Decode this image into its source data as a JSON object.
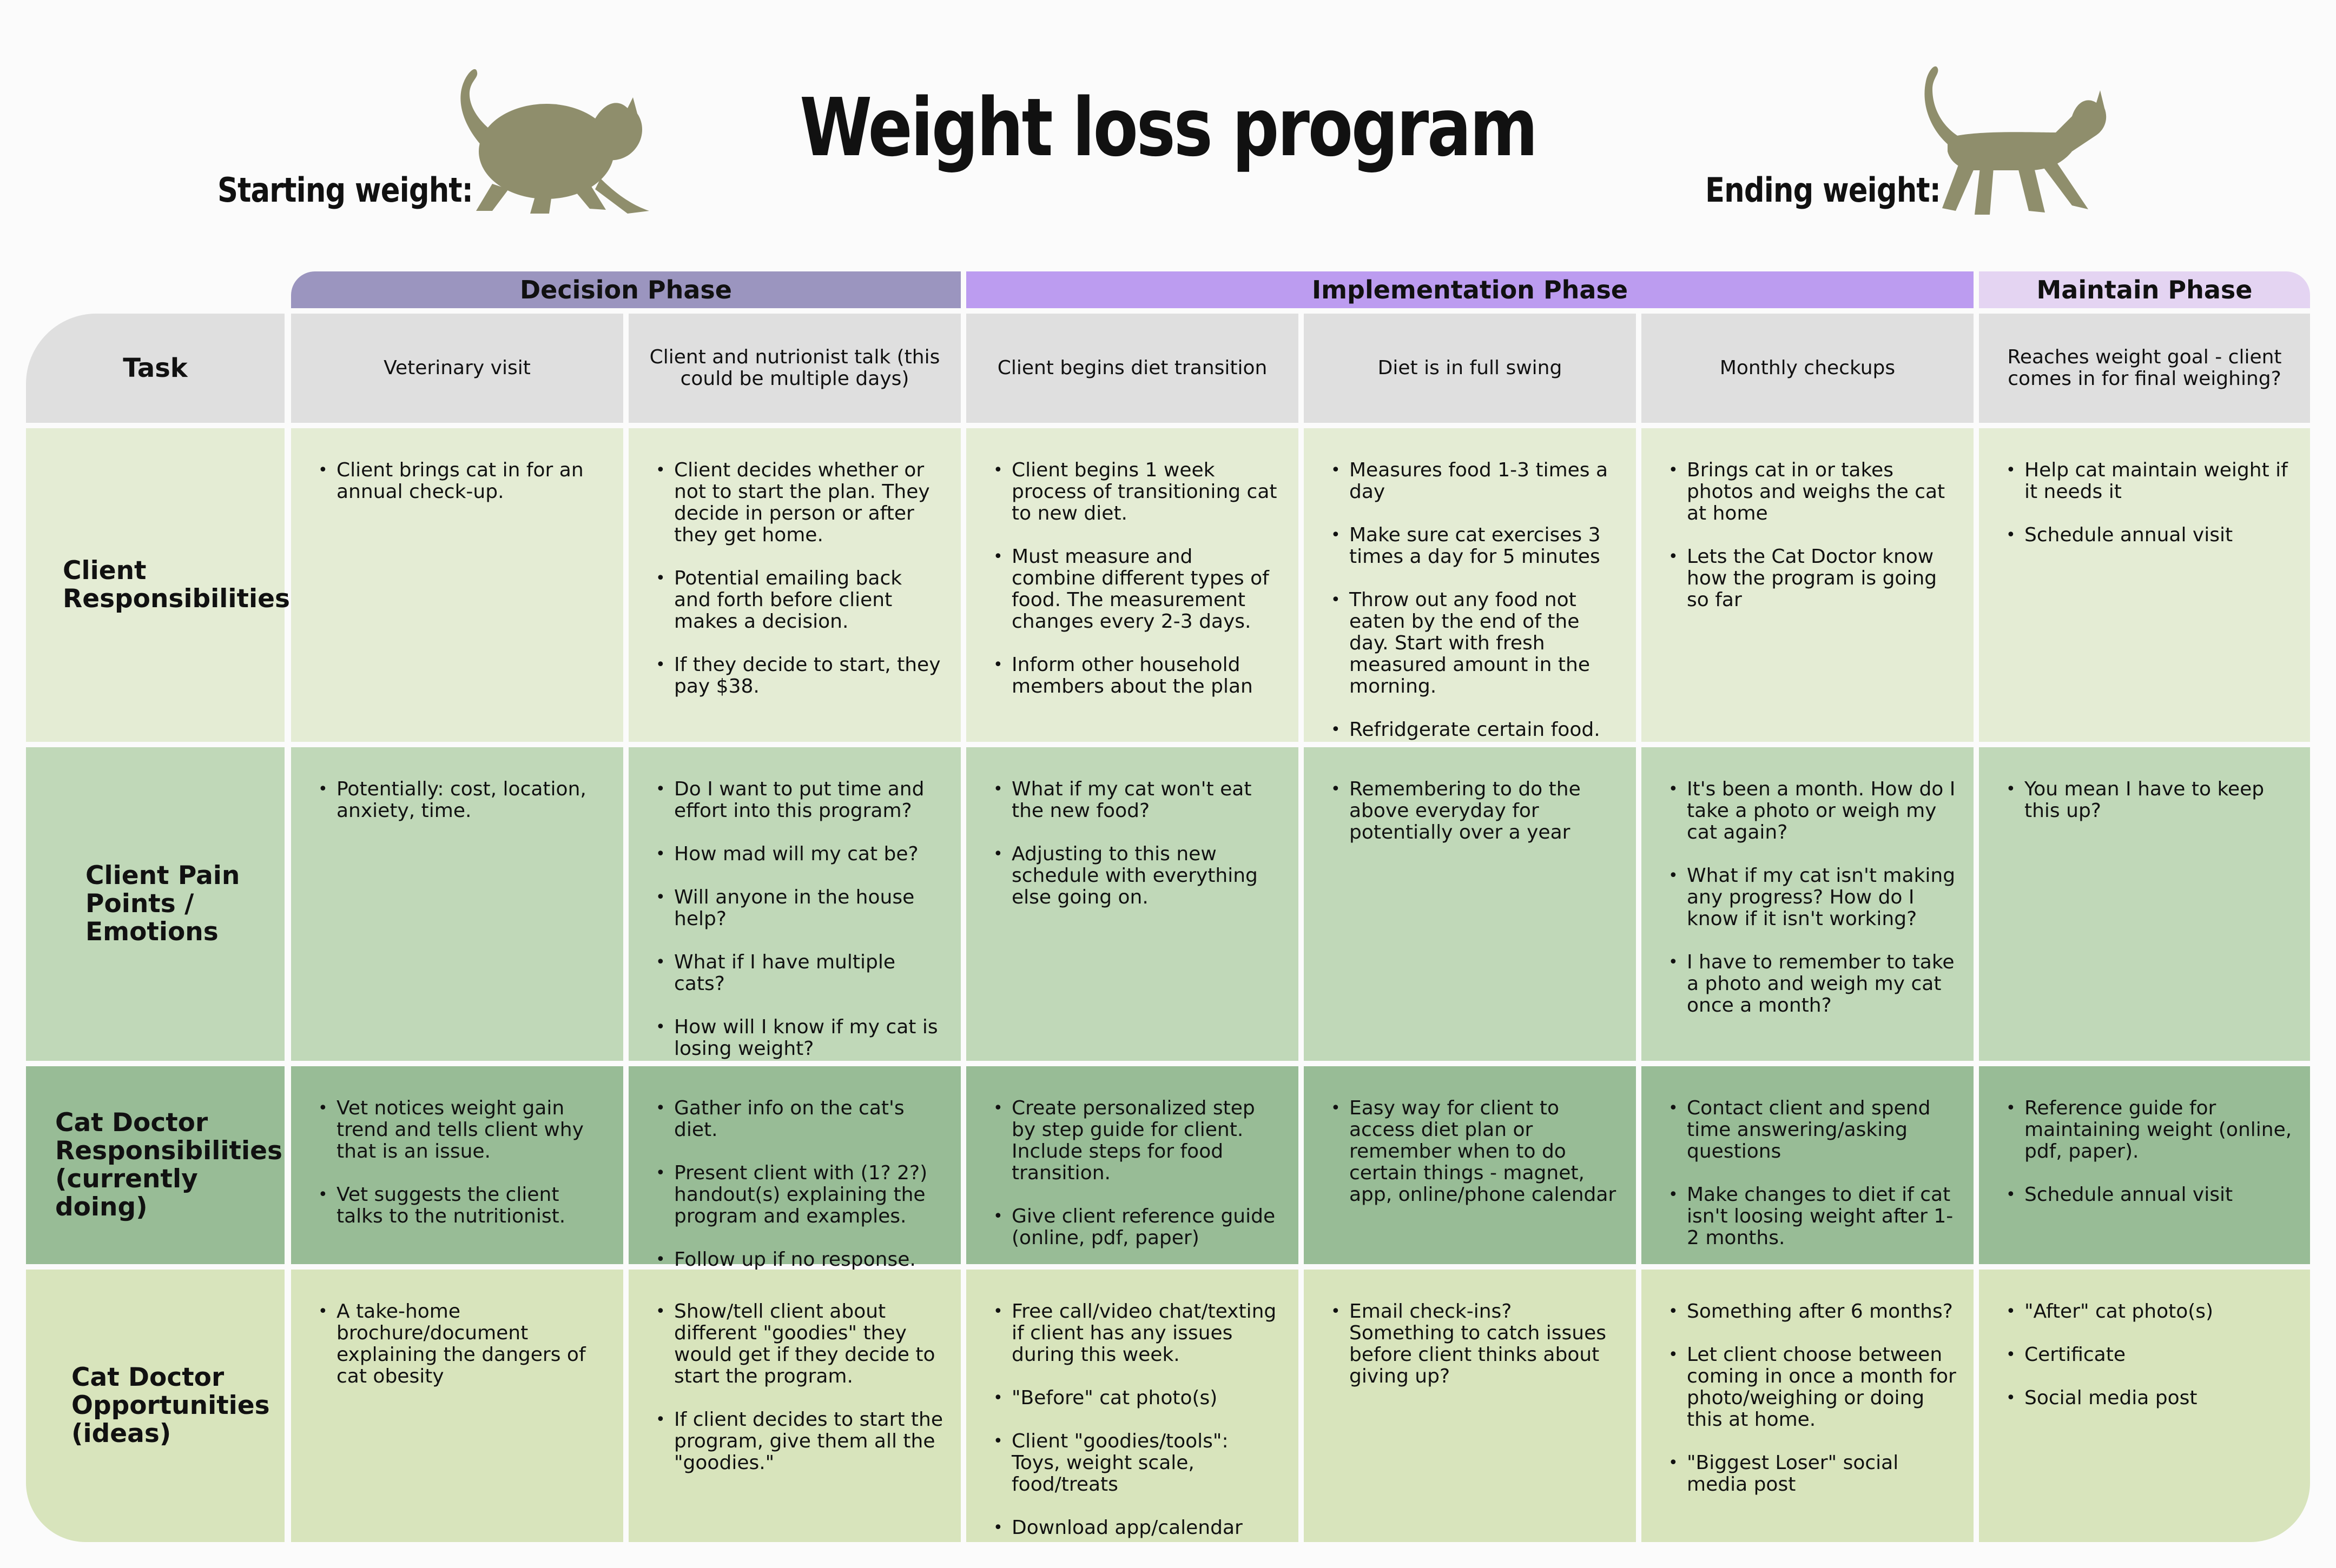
{
  "title": "Weight loss program",
  "starting_weight_label": "Starting weight:",
  "ending_weight_label": "Ending weight:",
  "icons": {
    "start": "fat-cat-silhouette-icon",
    "end": "slim-cat-silhouette-icon"
  },
  "colors": {
    "decision": "#9b95bf",
    "implementation": "#bc9cf0",
    "maintain": "#e4d4f2",
    "header_row": "#dfdfdf",
    "client_resp": "#e4ecd4",
    "pain_points": "#c0d8b8",
    "cat_doctor_resp": "#98bc96",
    "opportunities": "#d8e4bc",
    "cat_silhouette": "#8f8e6c"
  },
  "phases": [
    {
      "label": "Decision Phase"
    },
    {
      "label": "Implementation Phase"
    },
    {
      "label": "Maintain Phase"
    }
  ],
  "header": {
    "label": "Task",
    "tasks": [
      "Veterinary visit",
      "Client and nutrionist talk (this could be multiple days)",
      "Client begins diet transition",
      "Diet is in full swing",
      "Monthly checkups",
      "Reaches weight goal - client comes in for final weighing?"
    ]
  },
  "rows": [
    {
      "label": "Client Responsibilities",
      "cells": [
        [
          "Client brings cat in for an annual check-up."
        ],
        [
          "Client decides whether or not to start the plan. They decide in person or after they get home.",
          "Potential emailing back and forth before client makes a decision.",
          "If they decide to start, they pay $38."
        ],
        [
          "Client begins 1 week process of transitioning cat to new diet.",
          "Must measure and combine different types of food. The measurement changes every 2-3 days.",
          "Inform other household members about the plan"
        ],
        [
          "Measures food 1-3 times a day",
          "Make sure cat exercises 3 times a day for 5 minutes",
          "Throw out any food not eaten by the end of the day. Start with fresh measured amount in the morning.",
          "Refridgerate certain food."
        ],
        [
          "Brings cat in or takes photos and weighs the cat at home",
          "Lets the Cat Doctor know how the program is going so far"
        ],
        [
          "Help cat maintain weight if it needs it",
          "Schedule annual visit"
        ]
      ]
    },
    {
      "label": "Client Pain Points / Emotions",
      "cells": [
        [
          "Potentially: cost, location, anxiety, time."
        ],
        [
          "Do I want to put time and effort into this program?",
          "How mad will my cat be?",
          "Will anyone in the house help?",
          "What if I have multiple cats?",
          "How will I know if my cat is losing weight?"
        ],
        [
          "What if my cat won't eat the new food?",
          "Adjusting to this new schedule with everything else going on."
        ],
        [
          "Remembering to do the above everyday for potentially over a year"
        ],
        [
          "It's been a month. How do I take a photo or weigh my cat again?",
          "What if my cat isn't making any progress? How do I know if it isn't working?",
          "I have to remember to take a photo and weigh my cat once a month?"
        ],
        [
          "You mean I have to keep this up?"
        ]
      ]
    },
    {
      "label": "Cat Doctor Responsibilities (currently doing)",
      "cells": [
        [
          "Vet notices weight gain trend and tells client why that is an issue.",
          "Vet suggests the client talks to the nutritionist."
        ],
        [
          "Gather info on the cat's diet.",
          "Present client with (1? 2?) handout(s) explaining the program and examples.",
          "Follow up if no response."
        ],
        [
          "Create personalized step by step guide for client. Include steps for food transition.",
          "Give client reference guide (online, pdf, paper)"
        ],
        [
          "Easy way for client to access diet plan or remember when to do certain things - magnet, app, online/phone calendar"
        ],
        [
          "Contact client and spend time answering/asking questions",
          "Make changes to diet if cat isn't loosing weight after 1-2 months."
        ],
        [
          "Reference guide for maintaining weight (online, pdf, paper).",
          "Schedule annual visit"
        ]
      ]
    },
    {
      "label": "Cat Doctor Opportunities (ideas)",
      "cells": [
        [
          "A take-home brochure/document explaining the dangers of cat obesity"
        ],
        [
          "Show/tell client about different \"goodies\" they would get if they decide to start the program.",
          "If client decides to start the program, give them all the \"goodies.\""
        ],
        [
          "Free call/video chat/texting if client has any issues during this week.",
          "\"Before\" cat photo(s)",
          "Client \"goodies/tools\": Toys, weight scale, food/treats",
          "Download app/calendar"
        ],
        [
          "Email check-ins? Something to catch issues before client thinks about giving up?"
        ],
        [
          "Something after 6 months?",
          "Let client choose between coming in once a month for photo/weighing or doing this at home.",
          "\"Biggest Loser\" social media post"
        ],
        [
          "\"After\" cat photo(s)",
          "Certificate",
          "Social media post"
        ]
      ]
    }
  ]
}
